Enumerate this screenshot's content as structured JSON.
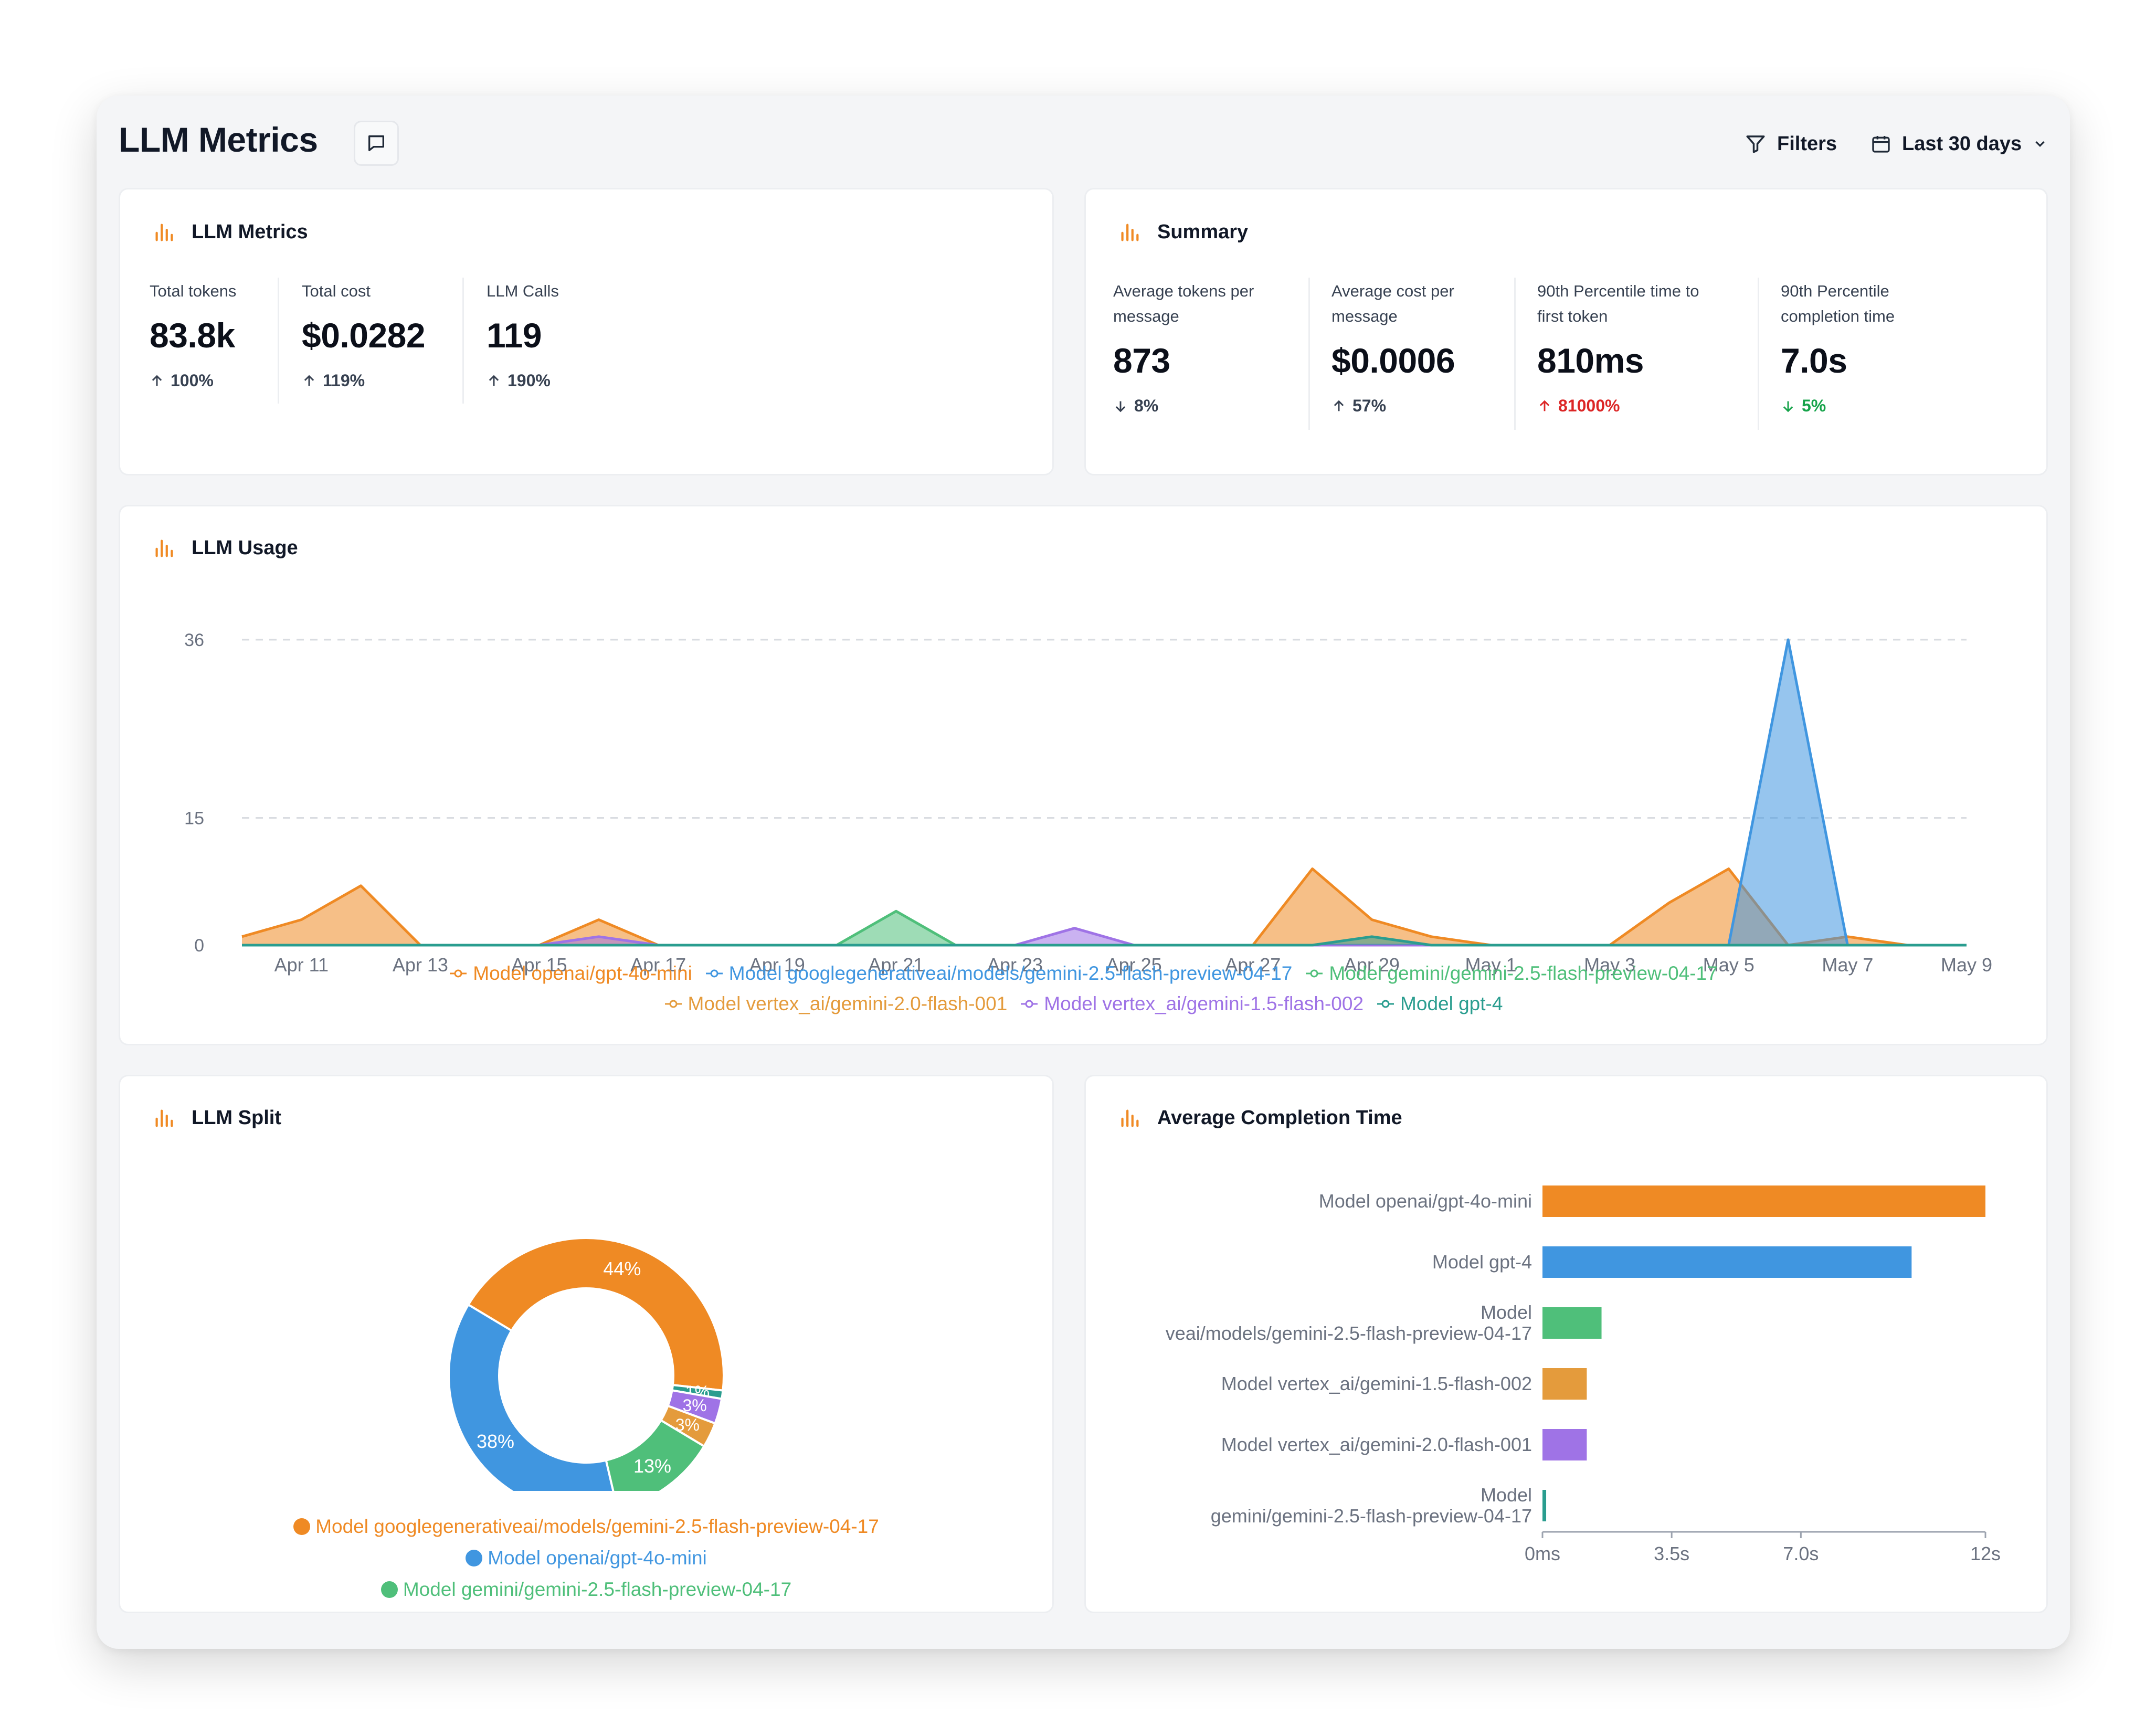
{
  "header": {
    "title": "LLM Metrics",
    "filters_label": "Filters",
    "date_range_label": "Last 30 days"
  },
  "colors": {
    "accent": "#f08a24",
    "orange": "#ef8a24",
    "blue": "#4096e0",
    "green": "#4fbf7a",
    "purple": "#9f73e6",
    "teal": "#2a9d8f",
    "red": "#dc2626",
    "good_green": "#16a34a"
  },
  "icons": [
    "comment-icon",
    "filter-icon",
    "calendar-icon",
    "chevron-down-icon",
    "bar-chart-icon",
    "arrow-up-icon",
    "arrow-down-icon"
  ],
  "llm_metrics": {
    "title": "LLM Metrics",
    "items": [
      {
        "label": "Total tokens",
        "value": "83.8k",
        "delta": "100%",
        "direction": "up"
      },
      {
        "label": "Total cost",
        "value": "$0.0282",
        "delta": "119%",
        "direction": "up"
      },
      {
        "label": "LLM Calls",
        "value": "119",
        "delta": "190%",
        "direction": "up"
      }
    ]
  },
  "summary": {
    "title": "Summary",
    "items": [
      {
        "label_line1": "Average tokens per",
        "label_line2": "message",
        "value": "873",
        "delta": "8%",
        "direction": "down"
      },
      {
        "label_line1": "Average cost per",
        "label_line2": "message",
        "value": "$0.0006",
        "delta": "57%",
        "direction": "up"
      },
      {
        "label_line1": "90th Percentile time to",
        "label_line2": "first token",
        "value": "810ms",
        "delta": "81000%",
        "direction": "up"
      },
      {
        "label_line1": "90th Percentile",
        "label_line2": "completion time",
        "value": "7.0s",
        "delta": "5%",
        "direction": "down"
      }
    ]
  },
  "usage": {
    "title": "LLM Usage"
  },
  "split": {
    "title": "LLM Split"
  },
  "completion": {
    "title": "Average Completion Time"
  },
  "chart_data": [
    {
      "type": "area",
      "y_ticks": [
        0,
        15,
        36
      ],
      "ylim": [
        0,
        36
      ],
      "grid": true,
      "legend_position": "bottom",
      "x_labels": [
        "Apr 11",
        "Apr 13",
        "Apr 15",
        "Apr 17",
        "Apr 19",
        "Apr 21",
        "Apr 23",
        "Apr 25",
        "Apr 27",
        "Apr 29",
        "May 1",
        "May 3",
        "May 5",
        "May 7",
        "May 9"
      ],
      "x": [
        "Apr 10",
        "Apr 11",
        "Apr 12",
        "Apr 13",
        "Apr 14",
        "Apr 15",
        "Apr 16",
        "Apr 17",
        "Apr 18",
        "Apr 19",
        "Apr 20",
        "Apr 21",
        "Apr 22",
        "Apr 23",
        "Apr 24",
        "Apr 25",
        "Apr 26",
        "Apr 27",
        "Apr 28",
        "Apr 29",
        "Apr 30",
        "May 1",
        "May 2",
        "May 3",
        "May 4",
        "May 5",
        "May 6",
        "May 7",
        "May 8",
        "May 9"
      ],
      "series": [
        {
          "name": "Model openai/gpt-4o-mini",
          "color": "#ef8a24",
          "values": [
            1,
            3,
            7,
            0,
            0,
            0,
            3,
            0,
            0,
            0,
            0,
            0,
            0,
            0,
            0,
            0,
            0,
            0,
            9,
            3,
            1,
            0,
            0,
            0,
            5,
            9,
            0,
            1,
            0,
            0
          ]
        },
        {
          "name": "Model googlegenerativeai/models/gemini-2.5-flash-preview-04-17",
          "color": "#4096e0",
          "values": [
            0,
            0,
            0,
            0,
            0,
            0,
            0,
            0,
            0,
            0,
            0,
            0,
            0,
            0,
            0,
            0,
            0,
            0,
            0,
            0,
            0,
            0,
            0,
            0,
            0,
            0,
            36,
            0,
            0,
            0
          ]
        },
        {
          "name": "Model gemini/gemini-2.5-flash-preview-04-17",
          "color": "#4fbf7a",
          "values": [
            0,
            0,
            0,
            0,
            0,
            0,
            0,
            0,
            0,
            0,
            0,
            4,
            0,
            0,
            0,
            0,
            0,
            0,
            0,
            0,
            0,
            0,
            0,
            0,
            0,
            0,
            0,
            0,
            0,
            0
          ]
        },
        {
          "name": "Model vertex_ai/gemini-2.0-flash-001",
          "color": "#e49b3c",
          "values": [
            0,
            0,
            0,
            0,
            0,
            0,
            0,
            0,
            0,
            0,
            0,
            0,
            0,
            0,
            0,
            0,
            0,
            0,
            0,
            0,
            0,
            0,
            0,
            0,
            0,
            0,
            0,
            0,
            0,
            0
          ]
        },
        {
          "name": "Model vertex_ai/gemini-1.5-flash-002",
          "color": "#9f73e6",
          "values": [
            0,
            0,
            0,
            0,
            0,
            0,
            1,
            0,
            0,
            0,
            0,
            0,
            0,
            0,
            2,
            0,
            0,
            0,
            0,
            0,
            0,
            0,
            0,
            0,
            0,
            0,
            0,
            0,
            0,
            0
          ]
        },
        {
          "name": "Model gpt-4",
          "color": "#2a9d8f",
          "values": [
            0,
            0,
            0,
            0,
            0,
            0,
            0,
            0,
            0,
            0,
            0,
            0,
            0,
            0,
            0,
            0,
            0,
            0,
            0,
            1,
            0,
            0,
            0,
            0,
            0,
            0,
            0,
            0,
            0,
            0
          ]
        }
      ]
    },
    {
      "type": "pie",
      "slices": [
        {
          "name": "Model googlegenerativeai/models/gemini-2.5-flash-preview-04-17",
          "value": 44,
          "label": "44%",
          "color": "#ef8a24"
        },
        {
          "name": "",
          "value": 1,
          "label": "1%",
          "color": "#2a9d8f"
        },
        {
          "name": "",
          "value": 3,
          "label": "3%",
          "color": "#9f73e6"
        },
        {
          "name": "",
          "value": 3,
          "label": "3%",
          "color": "#e49b3c"
        },
        {
          "name": "Model gemini/gemini-2.5-flash-preview-04-17",
          "value": 13,
          "label": "13%",
          "color": "#4fbf7a"
        },
        {
          "name": "Model openai/gpt-4o-mini",
          "value": 38,
          "label": "38%",
          "color": "#4096e0"
        }
      ],
      "legend": [
        {
          "name": "Model googlegenerativeai/models/gemini-2.5-flash-preview-04-17",
          "color": "#ef8a24"
        },
        {
          "name": "Model openai/gpt-4o-mini",
          "color": "#4096e0"
        },
        {
          "name": "Model gemini/gemini-2.5-flash-preview-04-17",
          "color": "#4fbf7a"
        }
      ]
    },
    {
      "type": "bar",
      "orientation": "horizontal",
      "categories": [
        [
          "Model openai/gpt-4o-mini"
        ],
        [
          "Model gpt-4"
        ],
        [
          "Model",
          "veai/models/gemini-2.5-flash-preview-04-17"
        ],
        [
          "Model vertex_ai/gemini-1.5-flash-002"
        ],
        [
          "Model vertex_ai/gemini-2.0-flash-001"
        ],
        [
          "Model",
          "gemini/gemini-2.5-flash-preview-04-17"
        ]
      ],
      "values": [
        12,
        10,
        1.6,
        1.2,
        1.2,
        0.1
      ],
      "colors": [
        "#ef8a24",
        "#4096e0",
        "#4fbf7a",
        "#e49b3c",
        "#9f73e6",
        "#2a9d8f"
      ],
      "x_ticks": [
        "0ms",
        "3.5s",
        "7.0s",
        "12s"
      ],
      "x_tick_values": [
        0,
        3.5,
        7.0,
        12
      ],
      "xlim": [
        0,
        12
      ]
    }
  ]
}
